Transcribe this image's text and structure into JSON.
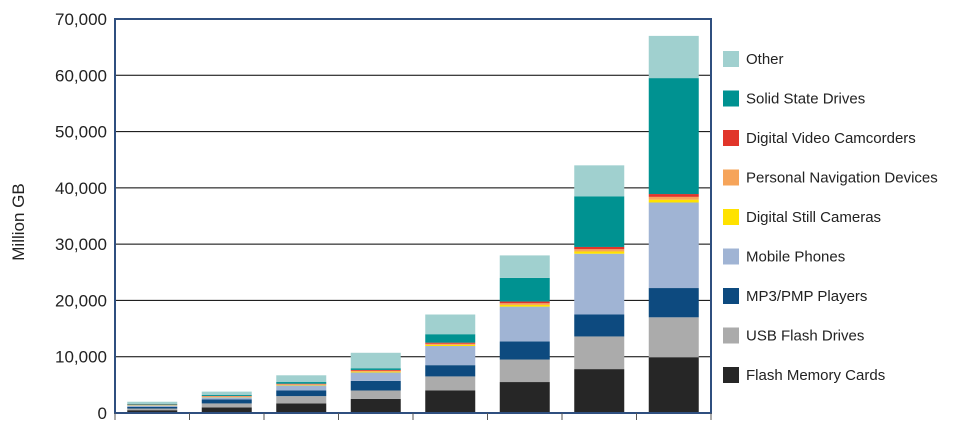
{
  "chart_data": {
    "type": "bar",
    "stacked": true,
    "ylabel": "Million GB",
    "ylim": [
      0,
      70000
    ],
    "yticks": [
      "0",
      "10,000",
      "20,000",
      "30,000",
      "40,000",
      "50,000",
      "60,000",
      "70,000"
    ],
    "ytick_values": [
      0,
      10000,
      20000,
      30000,
      40000,
      50000,
      60000,
      70000
    ],
    "categories": [
      "",
      "",
      "",
      "",
      "",
      "",
      "",
      ""
    ],
    "grid": true,
    "legend_position": "right",
    "series": [
      {
        "name": "Flash Memory Cards",
        "color": "#262626",
        "values": [
          500,
          1000,
          1700,
          2500,
          4000,
          5500,
          7800,
          9900
        ]
      },
      {
        "name": "USB Flash Drives",
        "color": "#ababab",
        "values": [
          300,
          700,
          1300,
          1500,
          2500,
          4000,
          5800,
          7100
        ]
      },
      {
        "name": "MP3/PMP Players",
        "color": "#0d4a7f",
        "values": [
          300,
          700,
          1000,
          1700,
          2000,
          3200,
          3900,
          5200
        ]
      },
      {
        "name": "Mobile Phones",
        "color": "#a0b4d4",
        "values": [
          250,
          400,
          900,
          1500,
          3400,
          6200,
          10800,
          15200
        ]
      },
      {
        "name": "Digital Still Cameras",
        "color": "#ffe200",
        "values": [
          50,
          80,
          100,
          150,
          200,
          300,
          400,
          500
        ]
      },
      {
        "name": "Personal Navigation Devices",
        "color": "#f6a45a",
        "values": [
          50,
          80,
          100,
          150,
          200,
          300,
          400,
          500
        ]
      },
      {
        "name": "Digital Video Camcorders",
        "color": "#e1352a",
        "values": [
          50,
          70,
          100,
          150,
          200,
          300,
          400,
          500
        ]
      },
      {
        "name": "Solid State Drives",
        "color": "#009291",
        "values": [
          100,
          170,
          300,
          300,
          1500,
          4200,
          9000,
          20600
        ]
      },
      {
        "name": "Other",
        "color": "#a0d0cf",
        "values": [
          400,
          600,
          1200,
          2750,
          3500,
          4000,
          5500,
          7500
        ]
      }
    ]
  }
}
